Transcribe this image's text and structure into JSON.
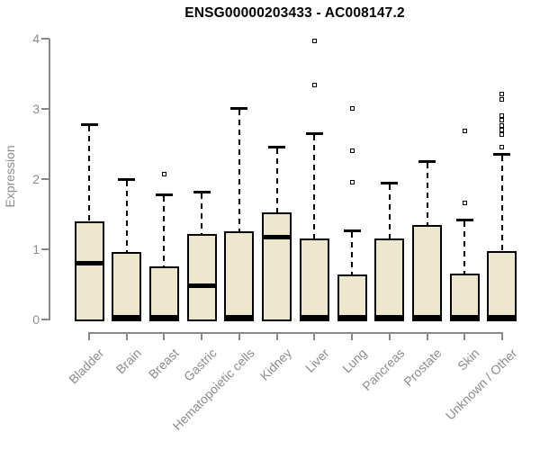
{
  "chart_data": {
    "type": "boxplot",
    "title": "ENSG00000203433 - AC008147.2",
    "ylabel": "Expression",
    "xlabel": "",
    "ylim": [
      0,
      4
    ],
    "yticks": [
      0,
      1,
      2,
      3,
      4
    ],
    "grid": false,
    "legend": "none",
    "categories": [
      "Bladder",
      "Brain",
      "Breast",
      "Gastric",
      "Hematopoietic cells",
      "Kidney",
      "Liver",
      "Lung",
      "Pancreas",
      "Prostate",
      "Skin",
      "Unknown / Other"
    ],
    "boxes": [
      {
        "category": "Bladder",
        "q1": 0,
        "median": 0.8,
        "q3": 1.4,
        "whisker_low": 0,
        "whisker_high": 2.8,
        "outliers": []
      },
      {
        "category": "Brain",
        "q1": 0,
        "median": 0.03,
        "q3": 0.96,
        "whisker_low": 0,
        "whisker_high": 2.01,
        "outliers": []
      },
      {
        "category": "Breast",
        "q1": 0,
        "median": 0.03,
        "q3": 0.76,
        "whisker_low": 0,
        "whisker_high": 1.8,
        "outliers": [
          2.07
        ]
      },
      {
        "category": "Gastric",
        "q1": 0,
        "median": 0.48,
        "q3": 1.22,
        "whisker_low": 0,
        "whisker_high": 1.83,
        "outliers": []
      },
      {
        "category": "Hematopoietic cells",
        "q1": 0,
        "median": 0.03,
        "q3": 1.26,
        "whisker_low": 0,
        "whisker_high": 3.02,
        "outliers": []
      },
      {
        "category": "Kidney",
        "q1": 0,
        "median": 1.17,
        "q3": 1.52,
        "whisker_low": 0,
        "whisker_high": 2.48,
        "outliers": []
      },
      {
        "category": "Liver",
        "q1": 0,
        "median": 0.03,
        "q3": 1.15,
        "whisker_low": 0,
        "whisker_high": 2.67,
        "outliers": [
          3.97,
          3.34
        ]
      },
      {
        "category": "Lung",
        "q1": 0,
        "median": 0.03,
        "q3": 0.64,
        "whisker_low": 0,
        "whisker_high": 1.28,
        "outliers": [
          3.01,
          2.4,
          1.96
        ]
      },
      {
        "category": "Pancreas",
        "q1": 0,
        "median": 0.03,
        "q3": 1.15,
        "whisker_low": 0,
        "whisker_high": 1.96,
        "outliers": []
      },
      {
        "category": "Prostate",
        "q1": 0,
        "median": 0.03,
        "q3": 1.35,
        "whisker_low": 0,
        "whisker_high": 2.27,
        "outliers": []
      },
      {
        "category": "Skin",
        "q1": 0,
        "median": 0.03,
        "q3": 0.66,
        "whisker_low": 0,
        "whisker_high": 1.43,
        "outliers": [
          2.69,
          1.66
        ]
      },
      {
        "category": "Unknown / Other",
        "q1": 0,
        "median": 0.03,
        "q3": 0.97,
        "whisker_low": 0,
        "whisker_high": 2.37,
        "outliers": [
          3.21,
          3.13,
          2.9,
          2.84,
          2.76,
          2.7,
          2.63,
          2.45
        ]
      }
    ],
    "colors": {
      "box_fill": "#ECE7CD",
      "box_border": "#000000",
      "median": "#000000",
      "whisker": "#000000",
      "outlier": "#000000",
      "axis": "#898989",
      "tick_label": "#8C8C8C",
      "title": "#000000",
      "background": "#FFFFFF"
    }
  }
}
